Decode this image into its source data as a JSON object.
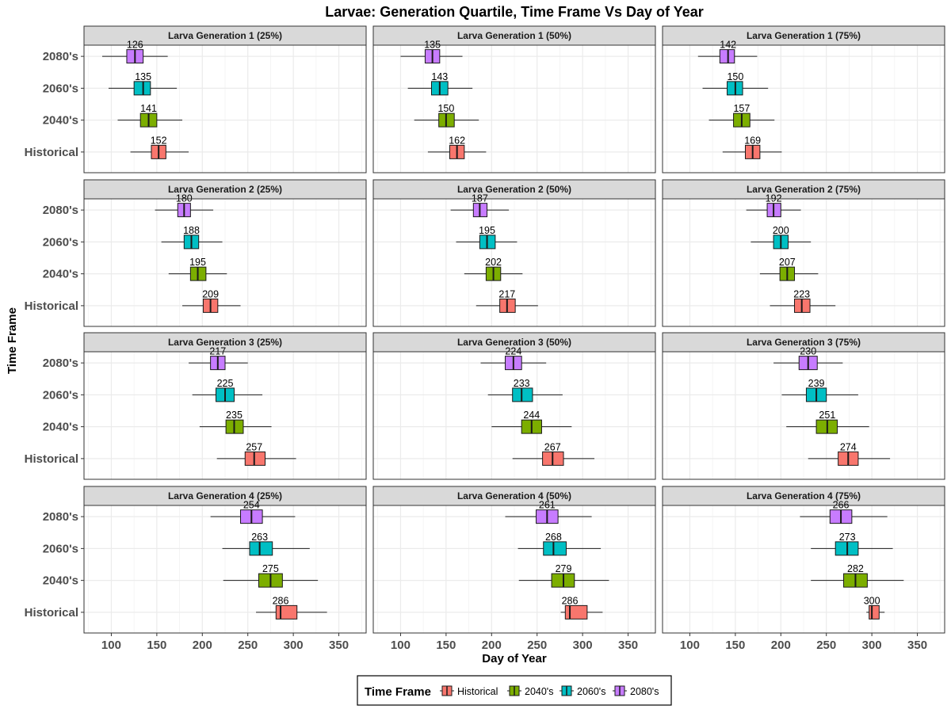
{
  "chart_data": {
    "type": "boxplot",
    "title": "Larvae: Generation Quartile, Time Frame Vs Day of Year",
    "xlabel": "Day of Year",
    "ylabel": "Time Frame",
    "xlim": [
      70,
      380
    ],
    "x_ticks": [
      100,
      150,
      200,
      250,
      300,
      350
    ],
    "y_categories": [
      "Historical",
      "2040's",
      "2060's",
      "2080's"
    ],
    "grid": true,
    "legend": {
      "title": "Time Frame",
      "position": "bottom",
      "entries": [
        "Historical",
        "2040's",
        "2060's",
        "2080's"
      ]
    },
    "colors": {
      "Historical": "#F8766D",
      "2040's": "#7CAE00",
      "2060's": "#00BFC4",
      "2080's": "#C77CFF"
    },
    "panels": [
      {
        "label": "Larva Generation 1 (25%)",
        "boxes": {
          "2080's": {
            "whisker_low": 90,
            "q1": 117,
            "median": 126,
            "q3": 135,
            "whisker_high": 162
          },
          "2060's": {
            "whisker_low": 97,
            "q1": 125,
            "median": 135,
            "q3": 143,
            "whisker_high": 172
          },
          "2040's": {
            "whisker_low": 107,
            "q1": 132,
            "median": 141,
            "q3": 150,
            "whisker_high": 178
          },
          "Historical": {
            "whisker_low": 121,
            "q1": 144,
            "median": 152,
            "q3": 160,
            "whisker_high": 185
          }
        }
      },
      {
        "label": "Larva Generation 1 (50%)",
        "boxes": {
          "2080's": {
            "whisker_low": 100,
            "q1": 127,
            "median": 135,
            "q3": 143,
            "whisker_high": 168
          },
          "2060's": {
            "whisker_low": 108,
            "q1": 134,
            "median": 143,
            "q3": 152,
            "whisker_high": 179
          },
          "2040's": {
            "whisker_low": 115,
            "q1": 142,
            "median": 150,
            "q3": 159,
            "whisker_high": 186
          },
          "Historical": {
            "whisker_low": 130,
            "q1": 154,
            "median": 162,
            "q3": 170,
            "whisker_high": 194
          }
        }
      },
      {
        "label": "Larva Generation 1 (75%)",
        "boxes": {
          "2080's": {
            "whisker_low": 109,
            "q1": 133,
            "median": 142,
            "q3": 149,
            "whisker_high": 174
          },
          "2060's": {
            "whisker_low": 114,
            "q1": 141,
            "median": 150,
            "q3": 158,
            "whisker_high": 186
          },
          "2040's": {
            "whisker_low": 121,
            "q1": 148,
            "median": 157,
            "q3": 166,
            "whisker_high": 193
          },
          "Historical": {
            "whisker_low": 136,
            "q1": 161,
            "median": 169,
            "q3": 177,
            "whisker_high": 201
          }
        }
      },
      {
        "label": "Larva Generation 2 (25%)",
        "boxes": {
          "2080's": {
            "whisker_low": 148,
            "q1": 173,
            "median": 180,
            "q3": 187,
            "whisker_high": 212
          },
          "2060's": {
            "whisker_low": 155,
            "q1": 180,
            "median": 188,
            "q3": 196,
            "whisker_high": 222
          },
          "2040's": {
            "whisker_low": 163,
            "q1": 187,
            "median": 195,
            "q3": 204,
            "whisker_high": 227
          },
          "Historical": {
            "whisker_low": 178,
            "q1": 201,
            "median": 209,
            "q3": 217,
            "whisker_high": 242
          }
        }
      },
      {
        "label": "Larva Generation 2 (50%)",
        "boxes": {
          "2080's": {
            "whisker_low": 155,
            "q1": 180,
            "median": 187,
            "q3": 195,
            "whisker_high": 219
          },
          "2060's": {
            "whisker_low": 161,
            "q1": 187,
            "median": 195,
            "q3": 204,
            "whisker_high": 228
          },
          "2040's": {
            "whisker_low": 170,
            "q1": 194,
            "median": 202,
            "q3": 210,
            "whisker_high": 234
          },
          "Historical": {
            "whisker_low": 183,
            "q1": 209,
            "median": 217,
            "q3": 226,
            "whisker_high": 251
          }
        }
      },
      {
        "label": "Larva Generation 2 (75%)",
        "boxes": {
          "2080's": {
            "whisker_low": 162,
            "q1": 185,
            "median": 192,
            "q3": 200,
            "whisker_high": 222
          },
          "2060's": {
            "whisker_low": 167,
            "q1": 192,
            "median": 200,
            "q3": 208,
            "whisker_high": 233
          },
          "2040's": {
            "whisker_low": 177,
            "q1": 199,
            "median": 207,
            "q3": 215,
            "whisker_high": 241
          },
          "Historical": {
            "whisker_low": 188,
            "q1": 215,
            "median": 223,
            "q3": 232,
            "whisker_high": 260
          }
        }
      },
      {
        "label": "Larva Generation 3 (25%)",
        "boxes": {
          "2080's": {
            "whisker_low": 185,
            "q1": 209,
            "median": 217,
            "q3": 225,
            "whisker_high": 250
          },
          "2060's": {
            "whisker_low": 189,
            "q1": 215,
            "median": 225,
            "q3": 235,
            "whisker_high": 266
          },
          "2040's": {
            "whisker_low": 197,
            "q1": 226,
            "median": 235,
            "q3": 245,
            "whisker_high": 276
          },
          "Historical": {
            "whisker_low": 216,
            "q1": 247,
            "median": 257,
            "q3": 269,
            "whisker_high": 303
          }
        }
      },
      {
        "label": "Larva Generation 3 (50%)",
        "boxes": {
          "2080's": {
            "whisker_low": 188,
            "q1": 215,
            "median": 224,
            "q3": 233,
            "whisker_high": 260
          },
          "2060's": {
            "whisker_low": 196,
            "q1": 223,
            "median": 233,
            "q3": 245,
            "whisker_high": 278
          },
          "2040's": {
            "whisker_low": 200,
            "q1": 233,
            "median": 244,
            "q3": 255,
            "whisker_high": 288
          },
          "Historical": {
            "whisker_low": 223,
            "q1": 256,
            "median": 267,
            "q3": 279,
            "whisker_high": 313
          }
        }
      },
      {
        "label": "Larva Generation 3 (75%)",
        "boxes": {
          "2080's": {
            "whisker_low": 192,
            "q1": 220,
            "median": 230,
            "q3": 240,
            "whisker_high": 268
          },
          "2060's": {
            "whisker_low": 201,
            "q1": 228,
            "median": 239,
            "q3": 250,
            "whisker_high": 285
          },
          "2040's": {
            "whisker_low": 206,
            "q1": 239,
            "median": 251,
            "q3": 262,
            "whisker_high": 297
          },
          "Historical": {
            "whisker_low": 230,
            "q1": 263,
            "median": 274,
            "q3": 285,
            "whisker_high": 320
          }
        }
      },
      {
        "label": "Larva Generation 4 (25%)",
        "boxes": {
          "2080's": {
            "whisker_low": 209,
            "q1": 242,
            "median": 254,
            "q3": 266,
            "whisker_high": 302
          },
          "2060's": {
            "whisker_low": 222,
            "q1": 252,
            "median": 263,
            "q3": 277,
            "whisker_high": 318
          },
          "2040's": {
            "whisker_low": 223,
            "q1": 262,
            "median": 275,
            "q3": 288,
            "whisker_high": 327
          },
          "Historical": {
            "whisker_low": 259,
            "q1": 281,
            "median": 286,
            "q3": 304,
            "whisker_high": 337
          }
        }
      },
      {
        "label": "Larva Generation 4 (50%)",
        "boxes": {
          "2080's": {
            "whisker_low": 215,
            "q1": 249,
            "median": 261,
            "q3": 273,
            "whisker_high": 310
          },
          "2060's": {
            "whisker_low": 229,
            "q1": 257,
            "median": 268,
            "q3": 282,
            "whisker_high": 320
          },
          "2040's": {
            "whisker_low": 230,
            "q1": 266,
            "median": 279,
            "q3": 291,
            "whisker_high": 329
          },
          "Historical": {
            "whisker_low": 276,
            "q1": 281,
            "median": 286,
            "q3": 305,
            "whisker_high": 322
          }
        }
      },
      {
        "label": "Larva Generation 4 (75%)",
        "boxes": {
          "2080's": {
            "whisker_low": 221,
            "q1": 254,
            "median": 266,
            "q3": 278,
            "whisker_high": 317
          },
          "2060's": {
            "whisker_low": 233,
            "q1": 260,
            "median": 273,
            "q3": 285,
            "whisker_high": 323
          },
          "2040's": {
            "whisker_low": 233,
            "q1": 269,
            "median": 282,
            "q3": 295,
            "whisker_high": 335
          },
          "Historical": {
            "whisker_low": 294,
            "q1": 297,
            "median": 300,
            "q3": 308,
            "whisker_high": 314
          }
        }
      }
    ]
  }
}
